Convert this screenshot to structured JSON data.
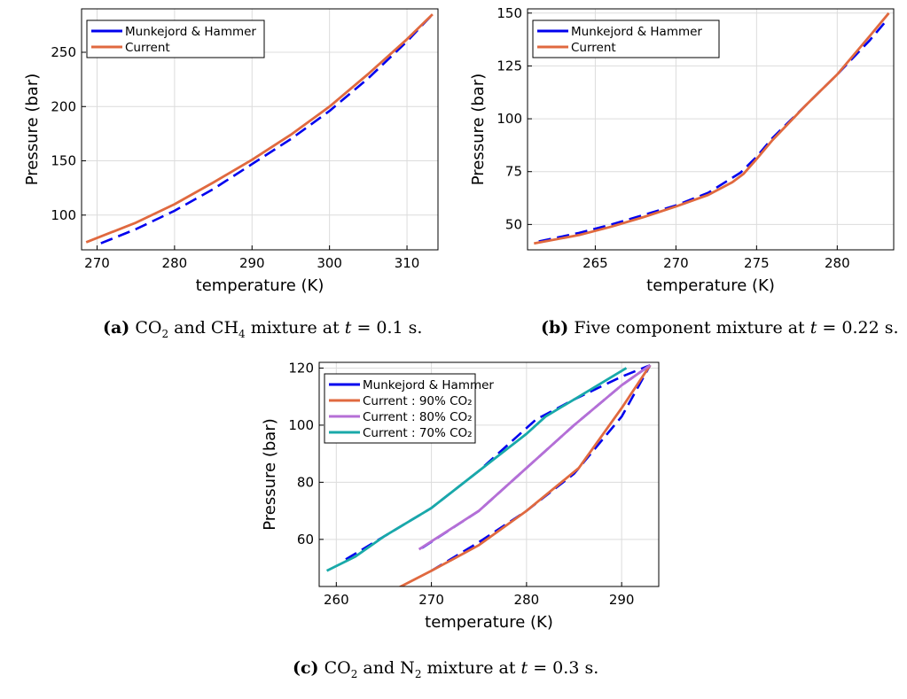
{
  "colors": {
    "reference": "#0000ee",
    "current": "#e0693f",
    "current_80": "#b56fd6",
    "current_70": "#19a9a9",
    "grid": "#dcdcdc"
  },
  "captions": {
    "a": {
      "tag": "(a)",
      "pre": "CO",
      "s1": "2",
      "mid": " and CH",
      "s2": "4",
      "post": " mixture at ",
      "t": "t",
      "eq": " = 0.1 s."
    },
    "b": {
      "tag": "(b)",
      "pre": "Five component mixture at ",
      "t": "t",
      "eq": " = 0.22 s."
    },
    "c": {
      "tag": "(c)",
      "pre": "CO",
      "s1": "2",
      "mid": " and N",
      "s2": "2",
      "post": " mixture at ",
      "t": "t",
      "eq": " = 0.3 s."
    }
  },
  "chart_data": [
    {
      "id": "a",
      "type": "line",
      "xlabel": "temperature (K)",
      "ylabel": "Pressure (bar)",
      "xlim": [
        268,
        314
      ],
      "ylim": [
        68,
        290
      ],
      "xticks": [
        270,
        280,
        290,
        300,
        310
      ],
      "yticks": [
        100,
        150,
        200,
        250
      ],
      "grid": true,
      "legend": "top-left",
      "series": [
        {
          "name": "Munkejord & Hammer",
          "style": "dashed",
          "color": "#0000ee",
          "x": [
            270.5,
            275,
            280,
            285,
            290,
            295,
            300,
            305,
            310,
            313.3
          ],
          "y": [
            74,
            87,
            104,
            124,
            147,
            170,
            196,
            226,
            260,
            285
          ]
        },
        {
          "name": "Current",
          "style": "solid",
          "color": "#e0693f",
          "x": [
            268.6,
            275,
            280,
            285,
            290,
            295,
            300,
            305,
            310,
            313.3
          ],
          "y": [
            75,
            93,
            110,
            130,
            151,
            174,
            200,
            230,
            262,
            285
          ]
        }
      ]
    },
    {
      "id": "b",
      "type": "line",
      "xlabel": "temperature (K)",
      "ylabel": "Pressure (bar)",
      "xlim": [
        260.8,
        283.5
      ],
      "ylim": [
        38,
        152
      ],
      "xticks": [
        265,
        270,
        275,
        280
      ],
      "yticks": [
        50,
        75,
        100,
        125,
        150
      ],
      "grid": true,
      "legend": "top-left",
      "series": [
        {
          "name": "Munkejord & Hammer",
          "style": "dashed",
          "color": "#0000ee",
          "x": [
            261.5,
            264,
            266,
            268,
            270,
            272,
            274,
            275,
            276,
            278,
            280,
            282,
            283
          ],
          "y": [
            42,
            46,
            50,
            54.5,
            59,
            65,
            74.5,
            82,
            91,
            106,
            121,
            137,
            146
          ]
        },
        {
          "name": "Current",
          "style": "solid",
          "color": "#e0693f",
          "x": [
            261.2,
            264,
            266,
            268,
            270,
            272,
            273.5,
            274.2,
            275,
            276,
            278,
            280,
            282,
            283.2
          ],
          "y": [
            41,
            45,
            49,
            53.5,
            58.5,
            64,
            70,
            74,
            81,
            90,
            106,
            121,
            139,
            150
          ]
        }
      ]
    },
    {
      "id": "c",
      "type": "line",
      "xlabel": "temperature (K)",
      "ylabel": "Pressure (bar)",
      "xlim": [
        258.2,
        293.9
      ],
      "ylim": [
        43.5,
        122
      ],
      "xticks": [
        260,
        270,
        280,
        290
      ],
      "yticks": [
        60,
        80,
        100,
        120
      ],
      "grid": true,
      "legend": "top-left",
      "series": [
        {
          "name": "Munkejord & Hammer",
          "style": "dashed",
          "color": "#0000ee",
          "x": [
            261,
            265,
            270,
            275,
            280,
            281,
            285,
            290,
            293
          ],
          "y": [
            53,
            61,
            71,
            84,
            99,
            102,
            109,
            117,
            121
          ]
        },
        {
          "name": "",
          "style": "dashed",
          "color": "#0000ee",
          "x": [
            269,
            275,
            280,
            285,
            290,
            293
          ],
          "y": [
            57,
            70,
            85,
            100,
            114,
            121
          ]
        },
        {
          "name": "",
          "style": "dashed",
          "color": "#0000ee",
          "x": [
            270,
            275,
            280,
            285,
            290,
            293
          ],
          "y": [
            49,
            59,
            70,
            83,
            103,
            121
          ]
        },
        {
          "name": "Current : 90% CO₂",
          "style": "solid",
          "color": "#e0693f",
          "x": [
            266.5,
            270,
            275,
            280,
            285.5,
            290,
            293
          ],
          "y": [
            43,
            49,
            58,
            70,
            85,
            106,
            121
          ]
        },
        {
          "name": "Current : 80% CO₂",
          "style": "solid",
          "color": "#b56fd6",
          "x": [
            268.7,
            275,
            280,
            285,
            290,
            293
          ],
          "y": [
            56.5,
            70,
            85,
            100,
            114,
            121
          ]
        },
        {
          "name": "Current : 70% CO₂",
          "style": "solid",
          "color": "#19a9a9",
          "x": [
            259,
            262,
            265,
            270,
            275,
            280,
            282,
            285,
            290.5
          ],
          "y": [
            49,
            54,
            61,
            71,
            84,
            97,
            103,
            109,
            120
          ]
        }
      ]
    }
  ]
}
